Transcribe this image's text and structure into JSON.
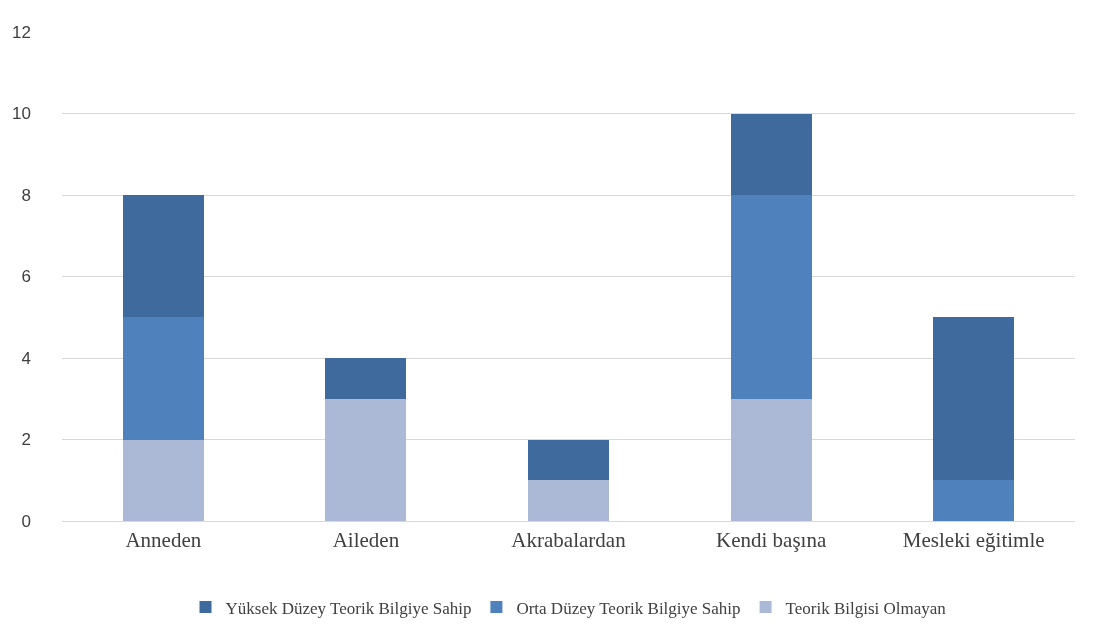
{
  "chart_data": {
    "type": "bar",
    "stacked": true,
    "categories": [
      "Anneden",
      "Aileden",
      "Akrabalardan",
      "Kendi başına",
      "Mesleki eğitimle"
    ],
    "series": [
      {
        "name": "Teorik Bilgisi Olmayan",
        "color": "#abb9d7",
        "values": [
          2,
          3,
          1,
          3,
          0
        ]
      },
      {
        "name": "Orta Düzey Teorik Bilgiye Sahip",
        "color": "#4f81bd",
        "values": [
          3,
          0,
          0,
          5,
          1
        ]
      },
      {
        "name": "Yüksek Düzey Teorik Bilgiye Sahip",
        "color": "#3f6a9e",
        "values": [
          3,
          1,
          1,
          2,
          4
        ]
      }
    ],
    "ylim": [
      0,
      12
    ],
    "yticks": [
      0,
      2,
      4,
      6,
      8,
      10,
      12
    ],
    "grid": "y",
    "legend": "bottom"
  }
}
